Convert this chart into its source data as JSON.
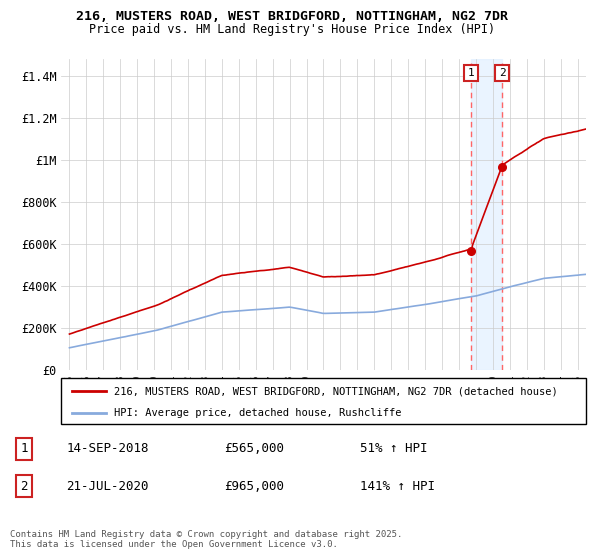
{
  "title1": "216, MUSTERS ROAD, WEST BRIDGFORD, NOTTINGHAM, NG2 7DR",
  "title2": "Price paid vs. HM Land Registry's House Price Index (HPI)",
  "ylabel_ticks": [
    "£0",
    "£200K",
    "£400K",
    "£600K",
    "£800K",
    "£1M",
    "£1.2M",
    "£1.4M"
  ],
  "ytick_values": [
    0,
    200000,
    400000,
    600000,
    800000,
    1000000,
    1200000,
    1400000
  ],
  "ylim": [
    0,
    1480000
  ],
  "legend_line1": "216, MUSTERS ROAD, WEST BRIDGFORD, NOTTINGHAM, NG2 7DR (detached house)",
  "legend_line2": "HPI: Average price, detached house, Rushcliffe",
  "annotation1_date": "14-SEP-2018",
  "annotation1_price": "£565,000",
  "annotation1_hpi": "51% ↑ HPI",
  "annotation2_date": "21-JUL-2020",
  "annotation2_price": "£965,000",
  "annotation2_hpi": "141% ↑ HPI",
  "footer": "Contains HM Land Registry data © Crown copyright and database right 2025.\nThis data is licensed under the Open Government Licence v3.0.",
  "line1_color": "#cc0000",
  "line2_color": "#88aadd",
  "vline_color": "#ff6666",
  "shade_color": "#ddeeff",
  "box1_color": "#cc2222",
  "box2_color": "#cc2222",
  "marker1_x": 2018.71,
  "marker1_y": 565000,
  "marker2_x": 2020.55,
  "marker2_y": 965000,
  "shade_x1": 2018.71,
  "shade_x2": 2020.55,
  "x_start": 1994.5,
  "x_end": 2025.5,
  "xtick_years": [
    1995,
    1996,
    1997,
    1998,
    1999,
    2000,
    2001,
    2002,
    2003,
    2004,
    2005,
    2006,
    2007,
    2008,
    2009,
    2010,
    2011,
    2012,
    2013,
    2014,
    2015,
    2016,
    2017,
    2018,
    2019,
    2020,
    2021,
    2022,
    2023,
    2024,
    2025
  ]
}
